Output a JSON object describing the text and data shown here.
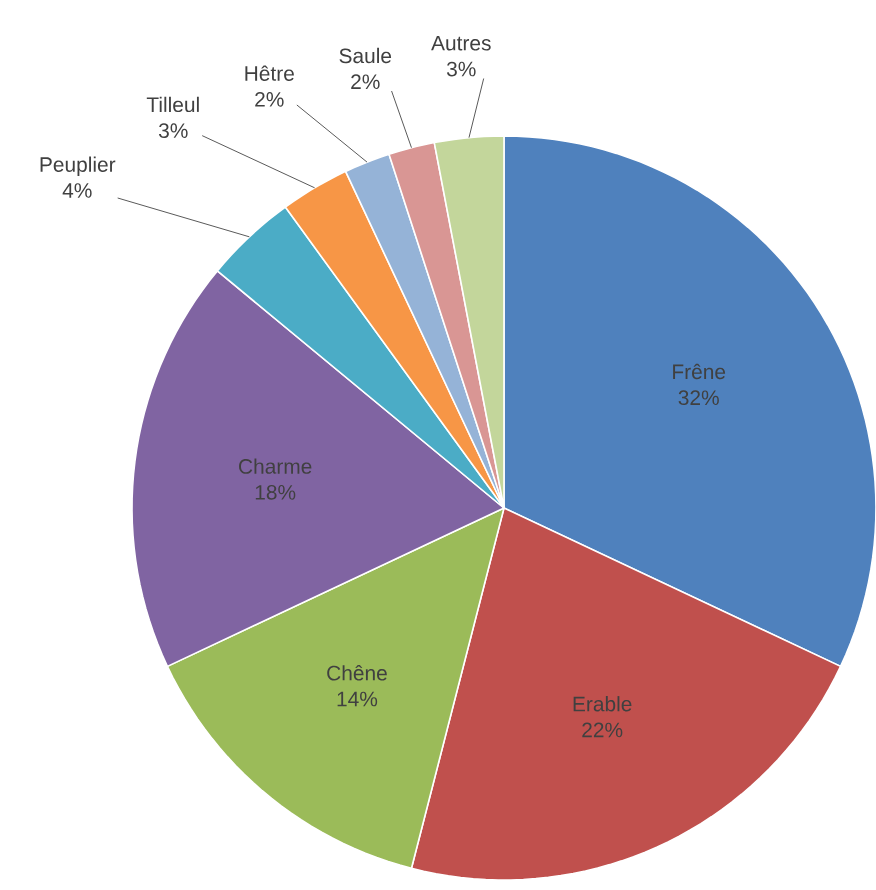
{
  "chart_data": {
    "type": "pie",
    "categories": [
      "Frêne",
      "Erable",
      "Chêne",
      "Charme",
      "Peuplier",
      "Tilleul",
      "Hêtre",
      "Saule",
      "Autres"
    ],
    "values": [
      32,
      22,
      14,
      18,
      4,
      3,
      2,
      2,
      3
    ],
    "value_labels": [
      "32%",
      "22%",
      "14%",
      "18%",
      "4%",
      "3%",
      "2%",
      "2%",
      "3%"
    ],
    "colors": [
      "#4f81bd",
      "#c0504d",
      "#9bbb59",
      "#8064a2",
      "#4bacc6",
      "#f79646",
      "#95b3d7",
      "#d99694",
      "#c3d69b"
    ]
  }
}
